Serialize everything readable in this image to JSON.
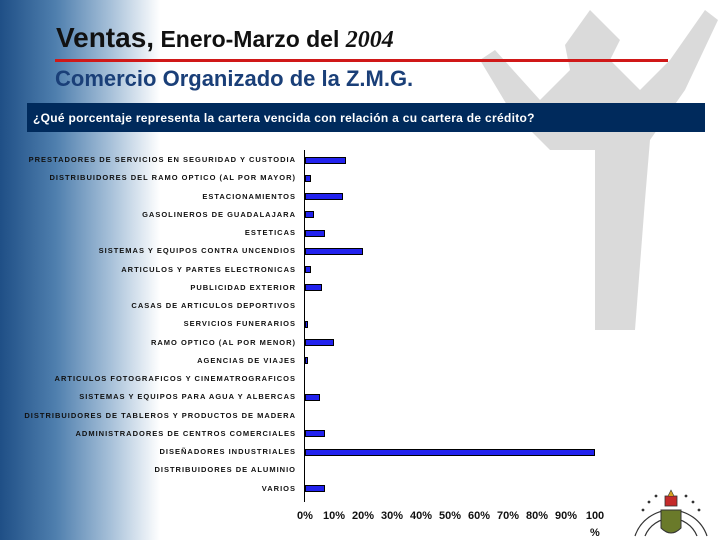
{
  "header": {
    "title_part1": "Ventas,",
    "title_part2": " Enero-Marzo del ",
    "title_year": "2004",
    "subtitle": "Comercio Organizado de la Z.M.G.",
    "question": "¿Qué porcentaje representa la cartera vencida con relación a cu cartera de crédito?"
  },
  "colors": {
    "accent_red": "#d01818",
    "title_blue": "#1a3f78",
    "bar_fill": "#2222ee",
    "question_bar": "#002a5c"
  },
  "icons": {
    "seal": "camara-de-comercio-seal-icon",
    "background": "statue-silhouette-icon"
  },
  "chart_data": {
    "type": "bar",
    "orientation": "horizontal",
    "categories": [
      "PRESTADORES DE SERVICIOS EN SEGURIDAD Y CUSTODIA",
      "DISTRIBUIDORES DEL RAMO OPTICO (AL POR MAYOR)",
      "ESTACIONAMIENTOS",
      "GASOLINEROS DE GUADALAJARA",
      "ESTETICAS",
      "SISTEMAS Y EQUIPOS CONTRA UNCENDIOS",
      "ARTICULOS Y PARTES ELECTRONICAS",
      "PUBLICIDAD EXTERIOR",
      "CASAS DE ARTICULOS DEPORTIVOS",
      "SERVICIOS FUNERARIOS",
      "RAMO OPTICO (AL POR MENOR)",
      "AGENCIAS DE VIAJES",
      "ARTICULOS FOTOGRAFICOS Y CINEMATROGRAFICOS",
      "SISTEMAS Y EQUIPOS PARA AGUA Y ALBERCAS",
      "DISTRIBUIDORES DE TABLEROS Y PRODUCTOS DE MADERA",
      "ADMINISTRADORES DE CENTROS COMERCIALES",
      "DISEÑADORES INDUSTRIALES",
      "DISTRIBUIDORES DE ALUMINIO",
      "VARIOS"
    ],
    "values": [
      14,
      2,
      13,
      3,
      7,
      20,
      2,
      6,
      0,
      1,
      10,
      1,
      0,
      5,
      0,
      7,
      100,
      0,
      7
    ],
    "xlim": [
      0,
      100
    ],
    "xticks": [
      "0%",
      "10%",
      "20%",
      "30%",
      "40%",
      "50%",
      "60%",
      "70%",
      "80%",
      "90%",
      "100"
    ],
    "xunit": "%",
    "grid": false,
    "legend": "none"
  }
}
